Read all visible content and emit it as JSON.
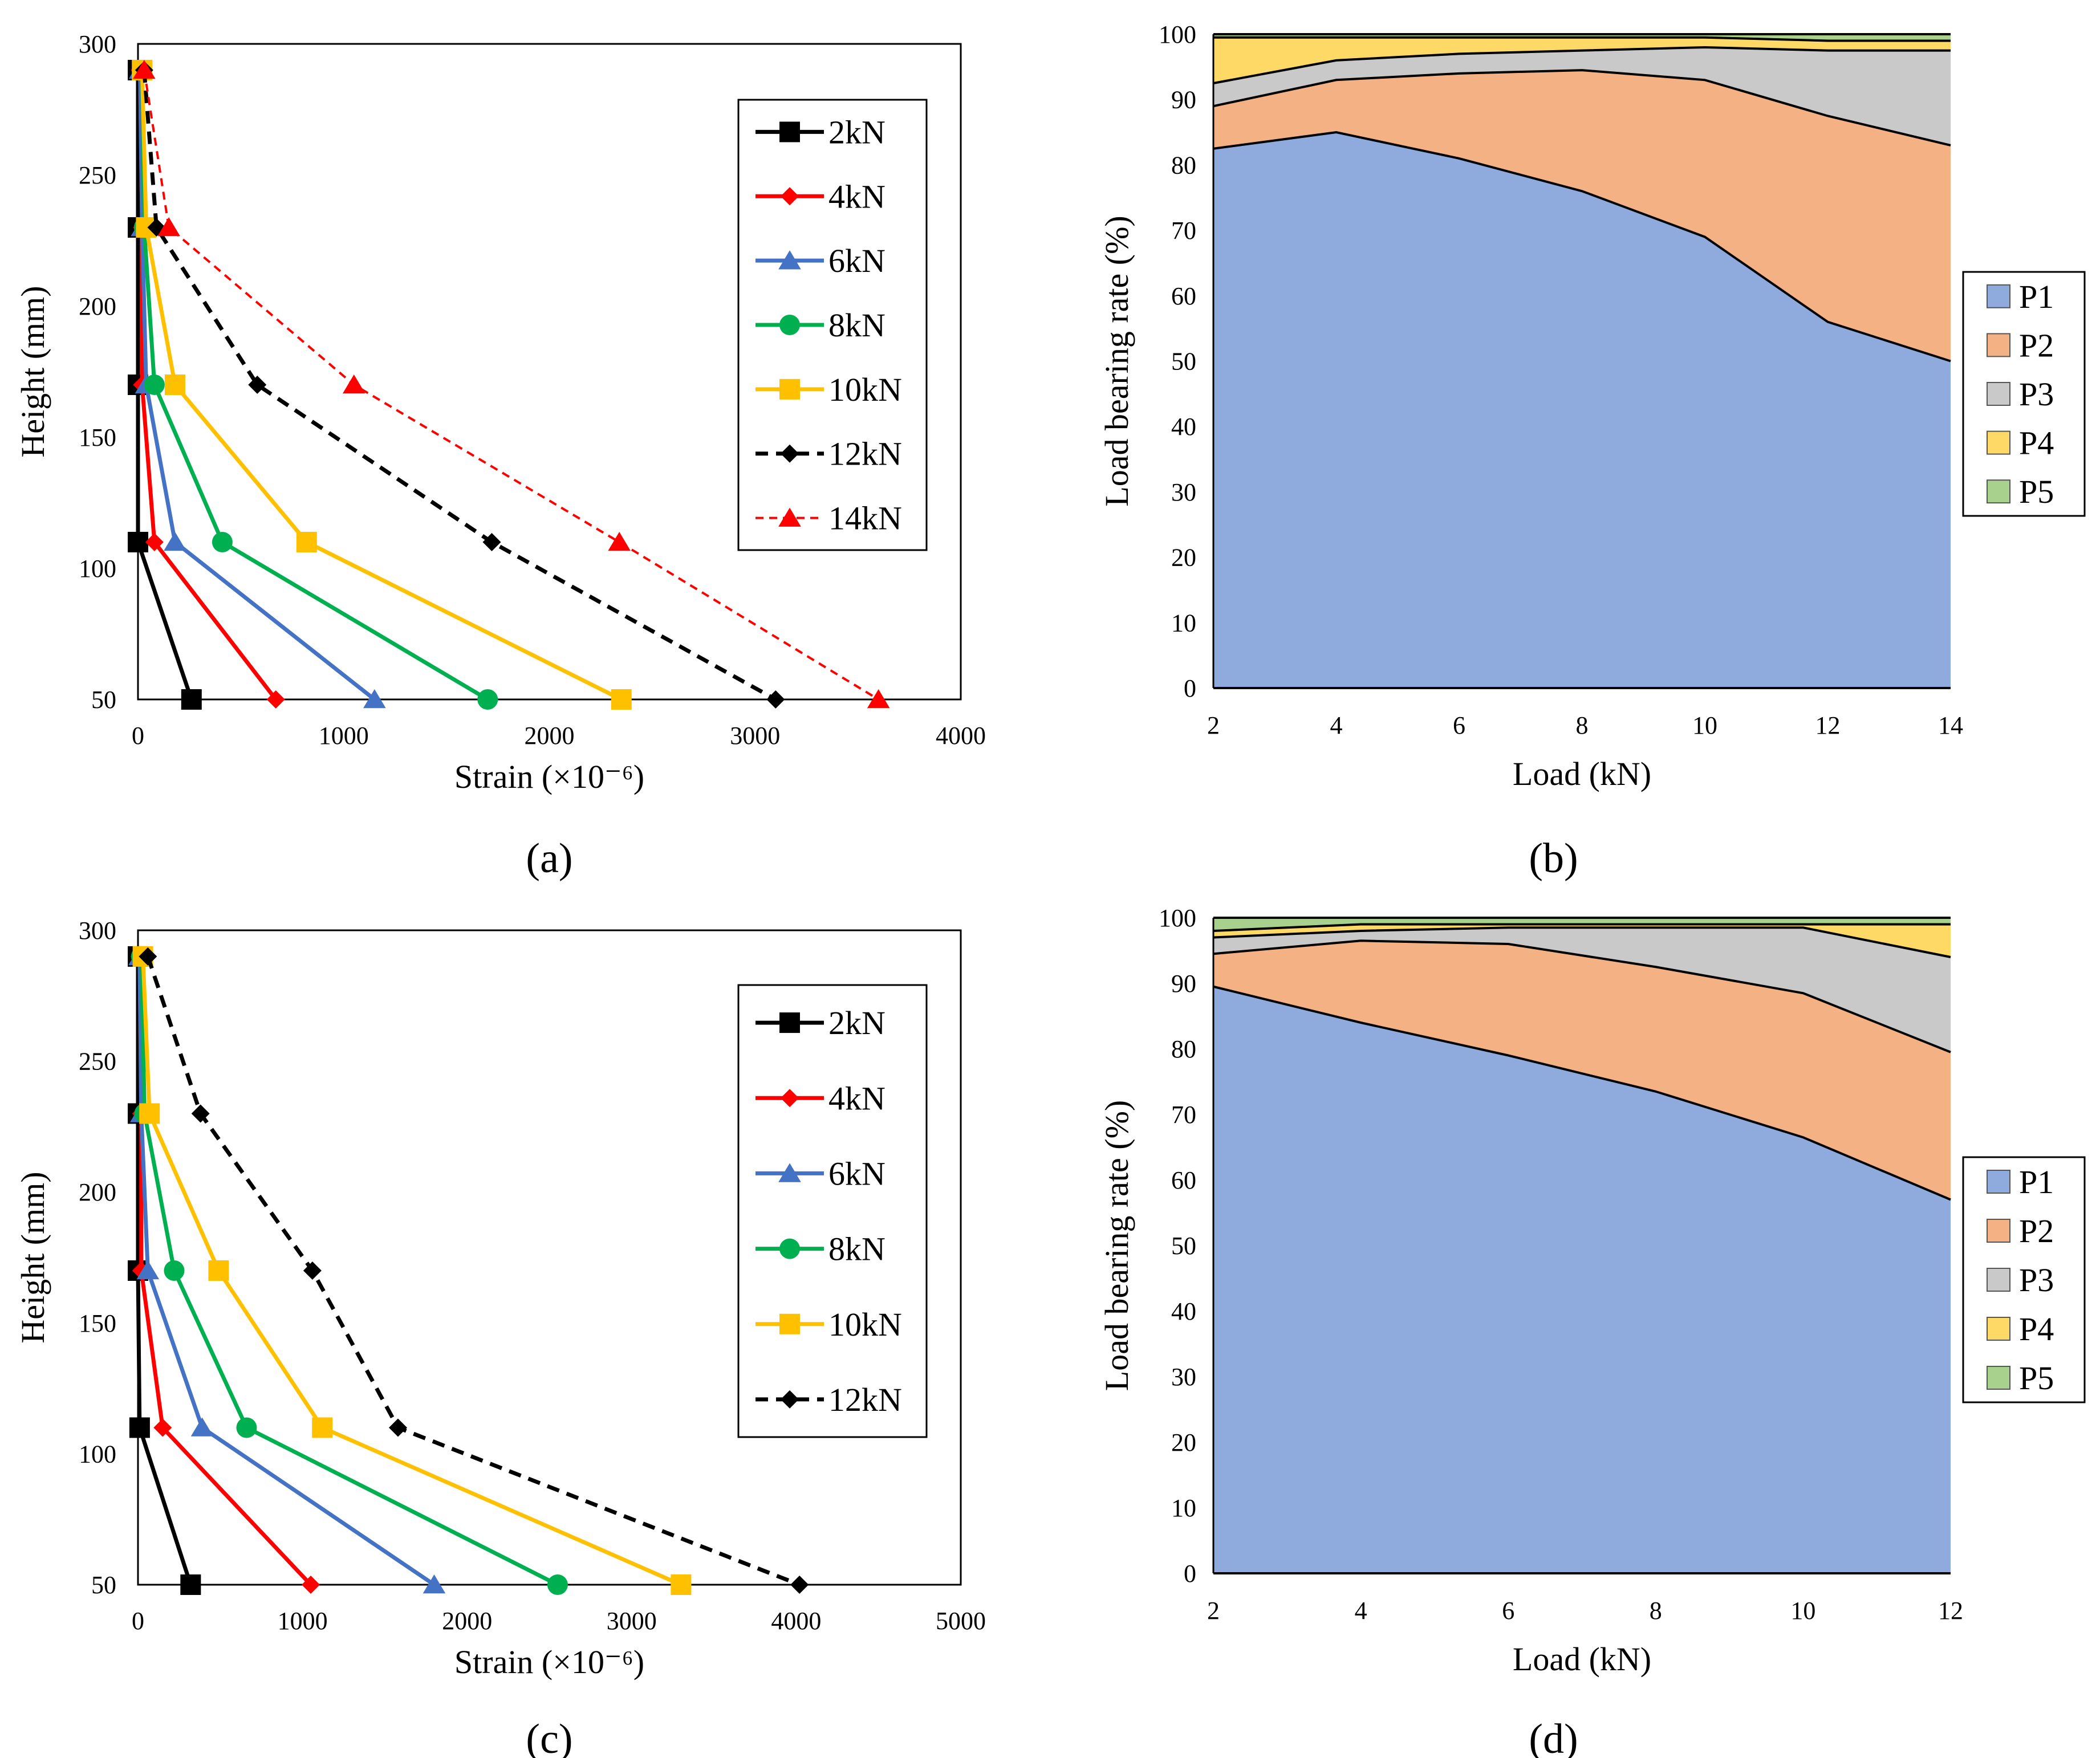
{
  "chart_data": [
    {
      "id": "a",
      "type": "line",
      "panel_label": "(a)",
      "xlabel": "Strain (×10⁻⁶)",
      "ylabel": "Height (mm)",
      "xlim": [
        0,
        4000
      ],
      "ylim": [
        50,
        300
      ],
      "xticks": [
        0,
        1000,
        2000,
        3000,
        4000
      ],
      "yticks": [
        50,
        100,
        150,
        200,
        250,
        300
      ],
      "y": [
        290,
        230,
        170,
        110,
        50
      ],
      "legend_position": "top-right",
      "series": [
        {
          "name": "2kN",
          "color": "#000000",
          "marker": "square",
          "dash": false,
          "x": [
            0,
            0,
            0,
            0,
            260
          ]
        },
        {
          "name": "4kN",
          "color": "#ff0000",
          "marker": "diamond",
          "dash": false,
          "x": [
            10,
            20,
            20,
            80,
            670
          ]
        },
        {
          "name": "6kN",
          "color": "#4472c4",
          "marker": "triangle",
          "dash": false,
          "x": [
            10,
            20,
            40,
            180,
            1150
          ]
        },
        {
          "name": "8kN",
          "color": "#00b050",
          "marker": "circle",
          "dash": false,
          "x": [
            20,
            30,
            80,
            410,
            1700
          ]
        },
        {
          "name": "10kN",
          "color": "#ffc000",
          "marker": "square",
          "dash": false,
          "x": [
            20,
            40,
            180,
            820,
            2350
          ]
        },
        {
          "name": "12kN",
          "color": "#000000",
          "marker": "diamond",
          "dash": true,
          "x": [
            30,
            90,
            580,
            1720,
            3100
          ]
        },
        {
          "name": "14kN",
          "color": "#ff0000",
          "marker": "triangle",
          "dash": true,
          "thin": true,
          "x": [
            30,
            150,
            1050,
            2340,
            3600
          ]
        }
      ]
    },
    {
      "id": "b",
      "type": "area",
      "panel_label": "(b)",
      "xlabel": "Load (kN)",
      "ylabel": "Load bearing rate (%)",
      "xlim": [
        2,
        14
      ],
      "ylim": [
        0,
        100
      ],
      "xticks": [
        2,
        4,
        6,
        8,
        10,
        12,
        14
      ],
      "yticks": [
        0,
        10,
        20,
        30,
        40,
        50,
        60,
        70,
        80,
        90,
        100
      ],
      "x": [
        2,
        4,
        6,
        8,
        10,
        12,
        14
      ],
      "legend_position": "right",
      "series": [
        {
          "name": "P1",
          "color": "#8faadc",
          "values": [
            82.5,
            85,
            81,
            76,
            69,
            56,
            50
          ]
        },
        {
          "name": "P2",
          "color": "#f4b183",
          "values": [
            6.5,
            8,
            13,
            18.5,
            24,
            31.5,
            33
          ]
        },
        {
          "name": "P3",
          "color": "#c9c9c9",
          "values": [
            3.5,
            3,
            3,
            3,
            5,
            10,
            14.5
          ]
        },
        {
          "name": "P4",
          "color": "#ffd966",
          "values": [
            7,
            3.5,
            2.5,
            2,
            1.5,
            1.5,
            1.5
          ]
        },
        {
          "name": "P5",
          "color": "#a9d18e",
          "values": [
            0.5,
            0.5,
            0.5,
            0.5,
            0.5,
            1,
            1
          ]
        }
      ]
    },
    {
      "id": "c",
      "type": "line",
      "panel_label": "(c)",
      "xlabel": "Strain (×10⁻⁶)",
      "ylabel": "Height (mm)",
      "xlim": [
        0,
        5000
      ],
      "ylim": [
        50,
        300
      ],
      "xticks": [
        0,
        1000,
        2000,
        3000,
        4000,
        5000
      ],
      "yticks": [
        50,
        100,
        150,
        200,
        250,
        300
      ],
      "y": [
        290,
        230,
        170,
        110,
        50
      ],
      "legend_position": "top-right",
      "series": [
        {
          "name": "2kN",
          "color": "#000000",
          "marker": "square",
          "dash": false,
          "x": [
            0,
            0,
            0,
            10,
            320
          ]
        },
        {
          "name": "4kN",
          "color": "#ff0000",
          "marker": "diamond",
          "dash": false,
          "x": [
            10,
            20,
            20,
            150,
            1050
          ]
        },
        {
          "name": "6kN",
          "color": "#4472c4",
          "marker": "triangle",
          "dash": false,
          "x": [
            10,
            20,
            60,
            390,
            1800
          ]
        },
        {
          "name": "8kN",
          "color": "#00b050",
          "marker": "circle",
          "dash": false,
          "x": [
            20,
            40,
            220,
            660,
            2550
          ]
        },
        {
          "name": "10kN",
          "color": "#ffc000",
          "marker": "square",
          "dash": false,
          "x": [
            30,
            70,
            490,
            1120,
            3300
          ]
        },
        {
          "name": "12kN",
          "color": "#000000",
          "marker": "diamond",
          "dash": true,
          "x": [
            60,
            380,
            1060,
            1580,
            4020
          ]
        }
      ]
    },
    {
      "id": "d",
      "type": "area",
      "panel_label": "(d)",
      "xlabel": "Load (kN)",
      "ylabel": "Load bearing rate (%)",
      "xlim": [
        2,
        12
      ],
      "ylim": [
        0,
        100
      ],
      "xticks": [
        2,
        4,
        6,
        8,
        10,
        12
      ],
      "yticks": [
        0,
        10,
        20,
        30,
        40,
        50,
        60,
        70,
        80,
        90,
        100
      ],
      "x": [
        2,
        4,
        6,
        8,
        10,
        12
      ],
      "legend_position": "right",
      "series": [
        {
          "name": "P1",
          "color": "#8faadc",
          "values": [
            89.5,
            84,
            79,
            73.5,
            66.5,
            57
          ]
        },
        {
          "name": "P2",
          "color": "#f4b183",
          "values": [
            5,
            12.5,
            17,
            19,
            22,
            22.5
          ]
        },
        {
          "name": "P3",
          "color": "#c9c9c9",
          "values": [
            2.5,
            1.5,
            2.5,
            6,
            10,
            14.5
          ]
        },
        {
          "name": "P4",
          "color": "#ffd966",
          "values": [
            1,
            1,
            0.5,
            0.5,
            0.5,
            5
          ]
        },
        {
          "name": "P5",
          "color": "#a9d18e",
          "values": [
            2,
            1,
            1,
            1,
            1,
            1
          ]
        }
      ]
    }
  ]
}
